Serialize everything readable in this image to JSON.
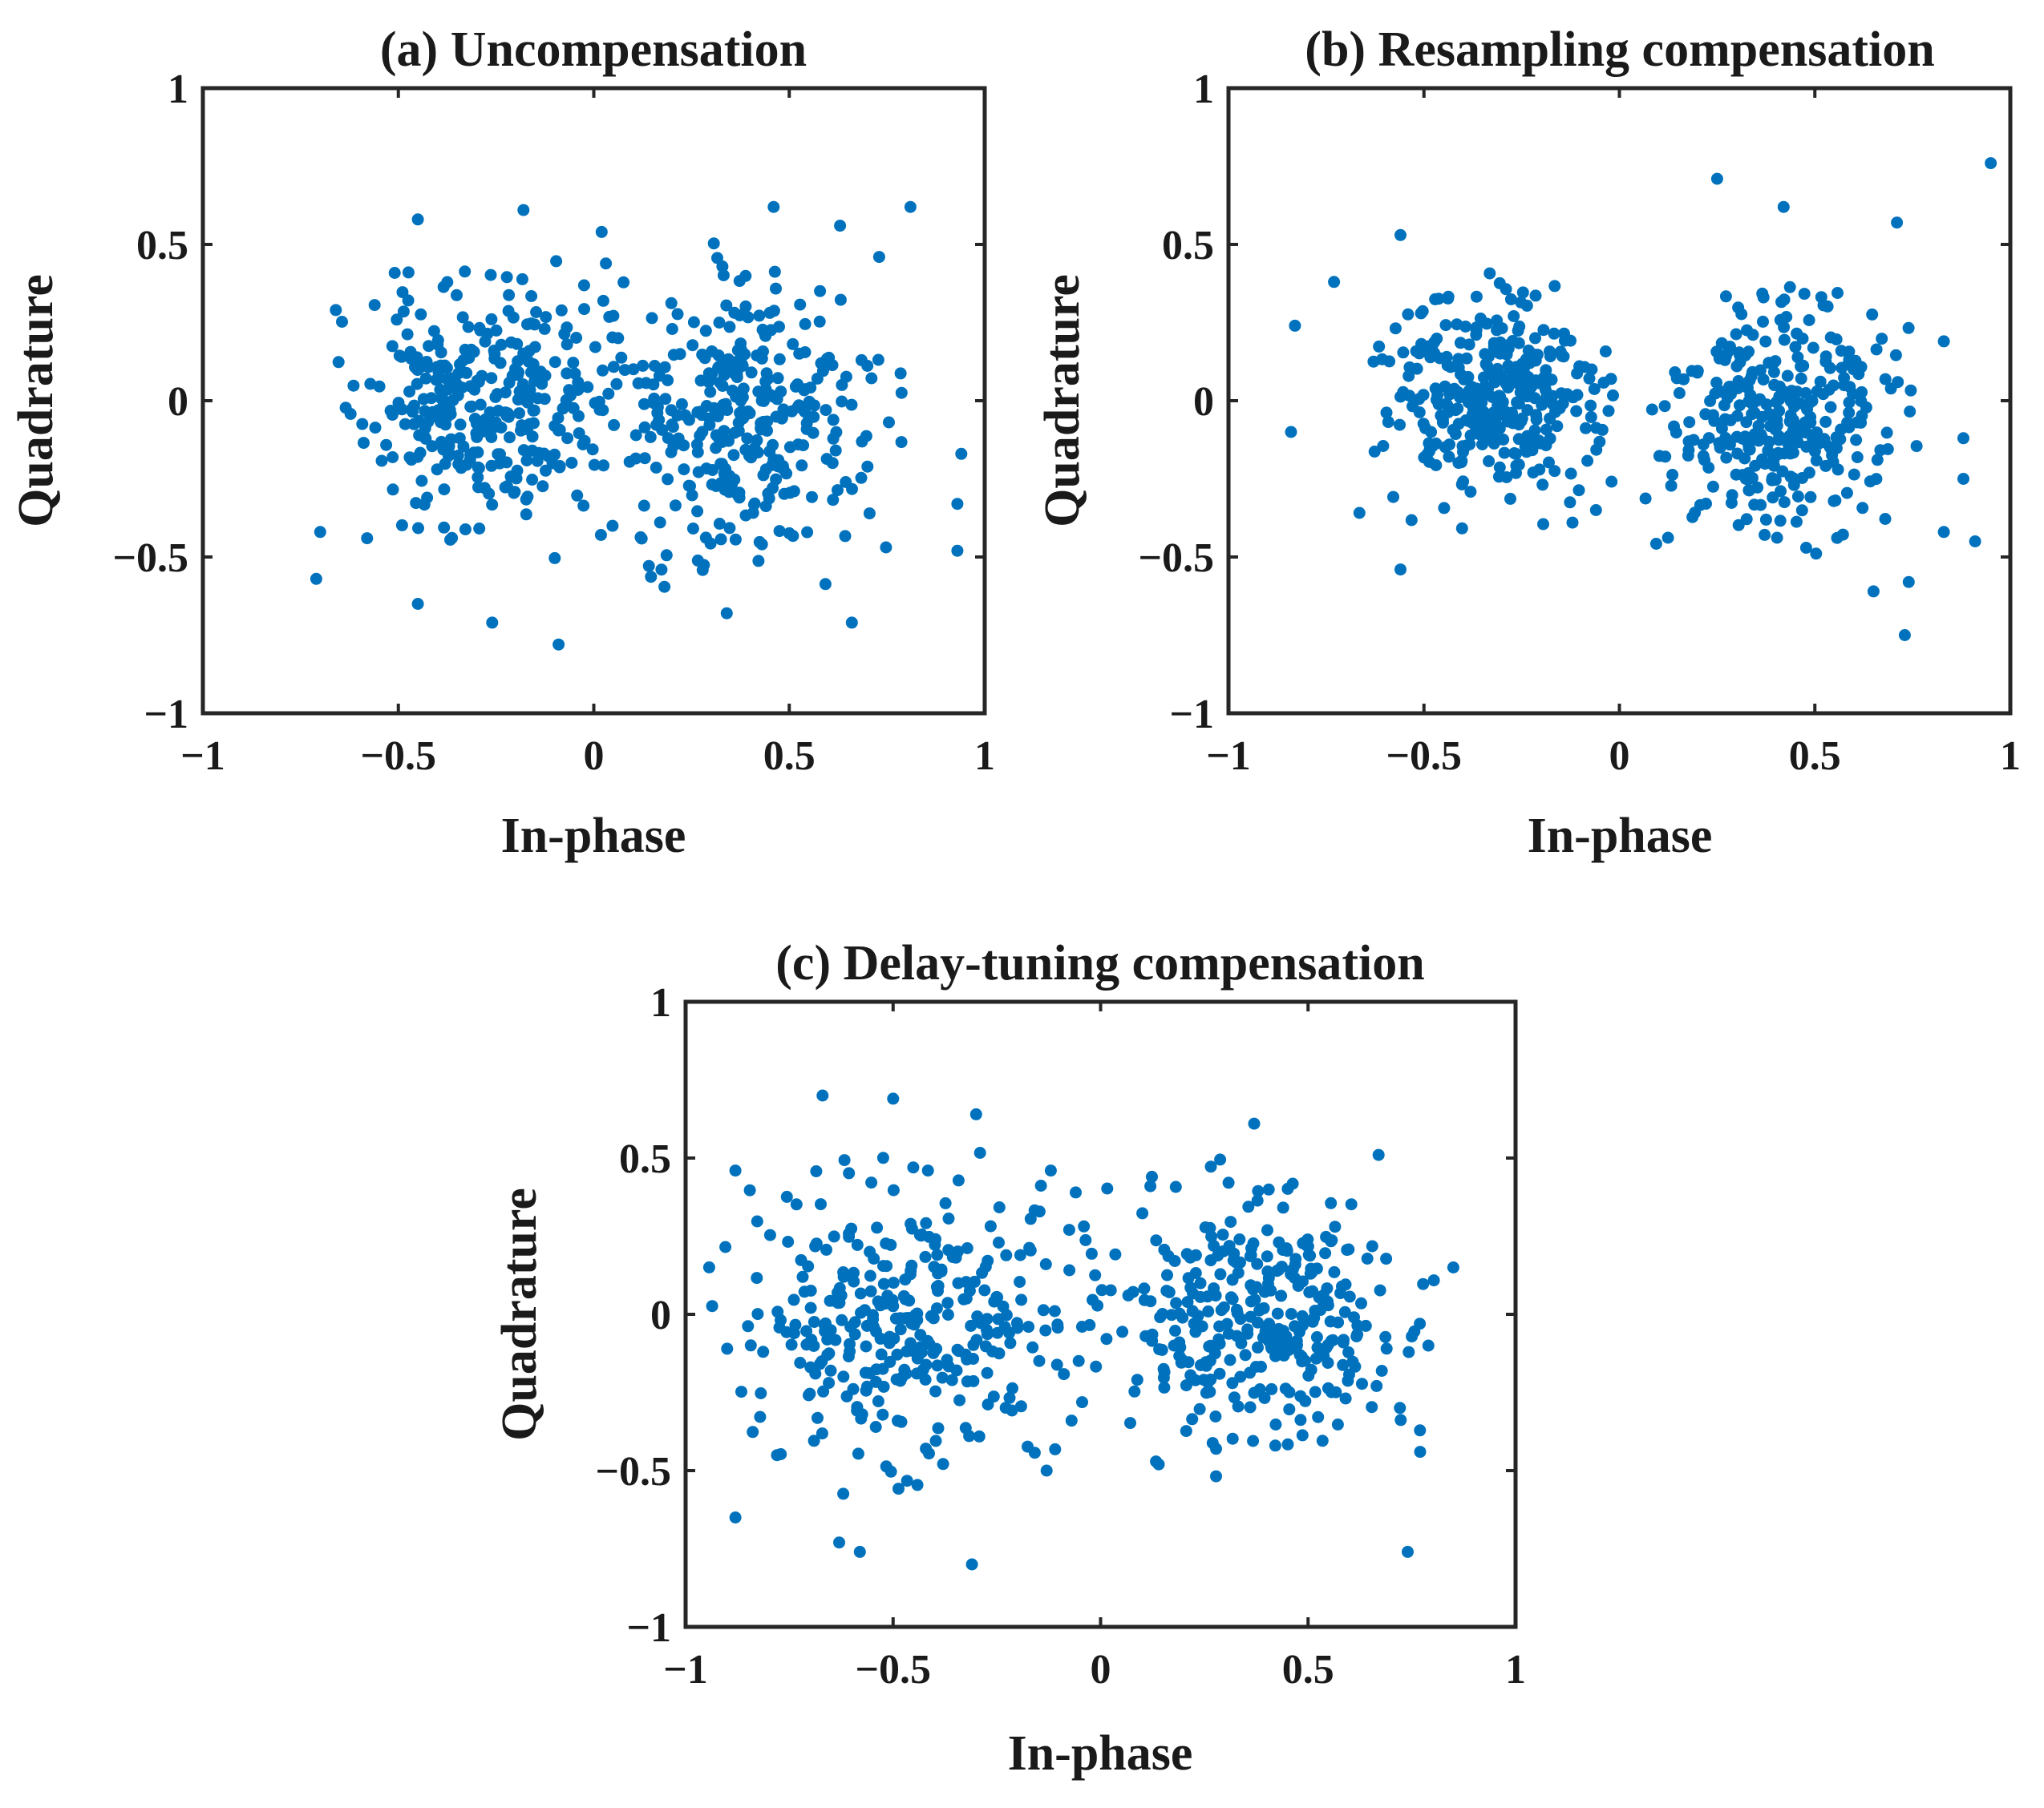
{
  "colors": {
    "marker": "#0072BD",
    "axes": "#262626",
    "text": "#1a1a1a"
  },
  "chart_data": [
    {
      "type": "scatter",
      "title": "(a) Uncompensation",
      "xlabel": "In-phase",
      "ylabel": "Quadrature",
      "xlim": [
        -1,
        1
      ],
      "ylim": [
        -1,
        1
      ],
      "xticks": [
        -1,
        -0.5,
        0,
        0.5,
        1
      ],
      "yticks": [
        -1,
        -0.5,
        0,
        0.5,
        1
      ],
      "xtick_labels": [
        "−1",
        "−0.5",
        "0",
        "0.5",
        "1"
      ],
      "ytick_labels": [
        "−1",
        "−0.5",
        "0",
        "0.5",
        "1"
      ],
      "clusters": [
        {
          "center": [
            -0.28,
            -0.02
          ],
          "spread": [
            0.15,
            0.19
          ],
          "count": 330
        },
        {
          "center": [
            0.38,
            -0.03
          ],
          "spread": [
            0.16,
            0.22
          ],
          "count": 330
        }
      ],
      "outliers": [
        [
          -0.71,
          -0.57
        ],
        [
          -0.7,
          -0.42
        ],
        [
          -0.26,
          -0.71
        ],
        [
          -0.09,
          -0.78
        ],
        [
          0.34,
          -0.68
        ],
        [
          0.66,
          -0.71
        ],
        [
          0.81,
          0.62
        ],
        [
          0.93,
          -0.33
        ],
        [
          0.94,
          -0.17
        ],
        [
          0.93,
          -0.48
        ],
        [
          -0.45,
          -0.65
        ],
        [
          -0.45,
          0.58
        ],
        [
          -0.18,
          0.61
        ],
        [
          0.02,
          0.54
        ],
        [
          0.46,
          0.62
        ],
        [
          0.63,
          0.56
        ],
        [
          0.73,
          0.46
        ],
        [
          -0.66,
          0.29
        ],
        [
          -0.58,
          -0.44
        ]
      ],
      "seed": 11
    },
    {
      "type": "scatter",
      "title": "(b) Resampling compensation",
      "xlabel": "In-phase",
      "ylabel": "Quadrature",
      "xlim": [
        -1,
        1
      ],
      "ylim": [
        -1,
        1
      ],
      "xticks": [
        -1,
        -0.5,
        0,
        0.5,
        1
      ],
      "yticks": [
        -1,
        -0.5,
        0,
        0.5,
        1
      ],
      "xtick_labels": [
        "−1",
        "−0.5",
        "0",
        "0.5",
        "1"
      ],
      "ytick_labels": [
        "−1",
        "−0.5",
        "0",
        "0.5",
        "1"
      ],
      "clusters": [
        {
          "center": [
            -0.33,
            0.0
          ],
          "spread": [
            0.13,
            0.16
          ],
          "count": 330
        },
        {
          "center": [
            0.4,
            -0.05
          ],
          "spread": [
            0.14,
            0.17
          ],
          "count": 320
        }
      ],
      "outliers": [
        [
          0.95,
          0.76
        ],
        [
          0.25,
          0.71
        ],
        [
          -0.83,
          0.24
        ],
        [
          -0.84,
          -0.1
        ],
        [
          -0.56,
          -0.54
        ],
        [
          0.73,
          -0.75
        ],
        [
          0.91,
          -0.45
        ],
        [
          0.88,
          -0.25
        ],
        [
          0.88,
          -0.12
        ],
        [
          0.83,
          -0.42
        ],
        [
          0.83,
          0.19
        ],
        [
          -0.12,
          -0.39
        ],
        [
          -0.06,
          -0.35
        ],
        [
          0.65,
          -0.61
        ],
        [
          0.71,
          0.57
        ],
        [
          0.74,
          -0.58
        ],
        [
          -0.56,
          0.53
        ],
        [
          0.42,
          0.62
        ],
        [
          -0.73,
          0.38
        ]
      ],
      "seed": 23
    },
    {
      "type": "scatter",
      "title": "(c) Delay-tuning compensation",
      "xlabel": "In-phase",
      "ylabel": "Quadrature",
      "xlim": [
        -1,
        1
      ],
      "ylim": [
        -1,
        1
      ],
      "xticks": [
        -1,
        -0.5,
        0,
        0.5,
        1
      ],
      "yticks": [
        -1,
        -0.5,
        0,
        0.5,
        1
      ],
      "xtick_labels": [
        "−1",
        "−0.5",
        "0",
        "0.5",
        "1"
      ],
      "ytick_labels": [
        "−1",
        "−0.5",
        "0",
        "0.5",
        "1"
      ],
      "clusters": [
        {
          "center": [
            -0.45,
            -0.02
          ],
          "spread": [
            0.2,
            0.22
          ],
          "count": 330
        },
        {
          "center": [
            0.38,
            -0.01
          ],
          "spread": [
            0.17,
            0.2
          ],
          "count": 330
        }
      ],
      "outliers": [
        [
          -0.88,
          -0.65
        ],
        [
          -0.31,
          -0.8
        ],
        [
          -0.58,
          -0.76
        ],
        [
          -0.63,
          -0.73
        ],
        [
          0.74,
          -0.76
        ],
        [
          0.77,
          -0.44
        ],
        [
          0.85,
          0.15
        ],
        [
          0.79,
          -0.1
        ],
        [
          -0.67,
          0.7
        ],
        [
          -0.5,
          0.69
        ],
        [
          -0.3,
          0.64
        ],
        [
          -0.12,
          0.46
        ],
        [
          -0.06,
          0.39
        ],
        [
          0.37,
          0.61
        ],
        [
          0.67,
          0.51
        ],
        [
          -0.88,
          0.46
        ],
        [
          -0.13,
          -0.5
        ],
        [
          -0.07,
          -0.34
        ],
        [
          0.12,
          0.41
        ],
        [
          -0.9,
          -0.11
        ],
        [
          0.14,
          -0.48
        ]
      ],
      "seed": 37
    }
  ]
}
